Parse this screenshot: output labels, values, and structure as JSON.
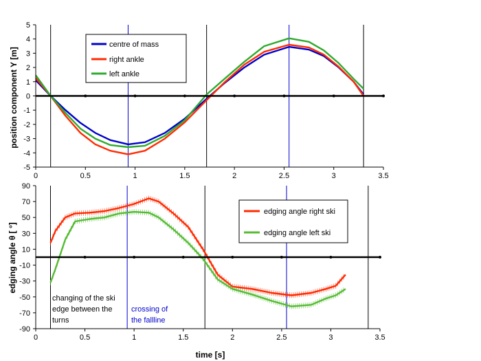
{
  "chart_data": [
    {
      "type": "line",
      "xlabel": "",
      "ylabel": "position component Y [m]",
      "xlim": [
        0,
        3.5
      ],
      "ylim": [
        -5,
        5
      ],
      "xticks": [
        "0",
        "0.5",
        "1",
        "1.5",
        "2",
        "2.5",
        "3",
        "3.5"
      ],
      "yticks": [
        "5",
        "4",
        "3",
        "2",
        "1",
        "0",
        "-1",
        "-2",
        "-3",
        "-4",
        "-5"
      ],
      "legend_position": "top-left",
      "vertical_lines": [
        {
          "x": 0.15,
          "color": "#000000"
        },
        {
          "x": 0.93,
          "color": "#0000cc"
        },
        {
          "x": 1.72,
          "color": "#000000"
        },
        {
          "x": 2.55,
          "color": "#0000cc"
        },
        {
          "x": 3.3,
          "color": "#000000"
        }
      ],
      "series": [
        {
          "name": "centre of mass",
          "color": "#0000cc",
          "x": [
            0,
            0.15,
            0.3,
            0.45,
            0.6,
            0.75,
            0.93,
            1.1,
            1.3,
            1.5,
            1.72,
            1.9,
            2.1,
            2.3,
            2.55,
            2.75,
            2.9,
            3.05,
            3.2,
            3.3
          ],
          "y": [
            1.1,
            0.0,
            -1.0,
            -1.9,
            -2.6,
            -3.1,
            -3.4,
            -3.25,
            -2.6,
            -1.6,
            -0.2,
            0.9,
            2.0,
            2.9,
            3.45,
            3.25,
            2.8,
            2.0,
            1.0,
            0.1
          ]
        },
        {
          "name": "right ankle",
          "color": "#ff2a00",
          "x": [
            0,
            0.15,
            0.3,
            0.45,
            0.6,
            0.75,
            0.93,
            1.1,
            1.3,
            1.5,
            1.72,
            1.9,
            2.1,
            2.3,
            2.55,
            2.75,
            2.9,
            3.05,
            3.2,
            3.3
          ],
          "y": [
            1.25,
            0.0,
            -1.4,
            -2.6,
            -3.4,
            -3.85,
            -4.1,
            -3.85,
            -3.0,
            -1.85,
            -0.3,
            0.95,
            2.2,
            3.1,
            3.6,
            3.4,
            2.9,
            2.05,
            1.0,
            0.0
          ]
        },
        {
          "name": "left ankle",
          "color": "#2eaa2e",
          "x": [
            0,
            0.15,
            0.3,
            0.45,
            0.6,
            0.75,
            0.93,
            1.1,
            1.3,
            1.5,
            1.72,
            1.9,
            2.1,
            2.3,
            2.55,
            2.75,
            2.9,
            3.05,
            3.2,
            3.3
          ],
          "y": [
            1.45,
            0.0,
            -1.2,
            -2.3,
            -3.0,
            -3.45,
            -3.6,
            -3.5,
            -2.8,
            -1.7,
            0.1,
            1.2,
            2.4,
            3.5,
            4.05,
            3.8,
            3.2,
            2.3,
            1.2,
            0.5
          ]
        }
      ]
    },
    {
      "type": "line",
      "xlabel": "time [s]",
      "ylabel": "edging angle  θ  [ °]",
      "xlim": [
        0,
        3.5
      ],
      "ylim": [
        -90,
        90
      ],
      "xticks": [
        "0",
        "0.5",
        "1",
        "1.5",
        "2",
        "2.5",
        "3",
        "3.5"
      ],
      "yticks": [
        "90",
        "70",
        "50",
        "30",
        "10",
        "-10",
        "-30",
        "-50",
        "-70",
        "-90"
      ],
      "legend_position": "top-right",
      "vertical_lines": [
        {
          "x": 0.15,
          "color": "#000000"
        },
        {
          "x": 0.93,
          "color": "#0000cc"
        },
        {
          "x": 1.72,
          "color": "#000000"
        },
        {
          "x": 2.55,
          "color": "#0000cc"
        },
        {
          "x": 3.38,
          "color": "#000000"
        }
      ],
      "annotations": [
        {
          "lines": [
            "changing of the ski",
            "edge between the",
            "turns"
          ],
          "x": 0.18,
          "y": -58,
          "color": "#000000"
        },
        {
          "lines": [
            "crossing of",
            "the fallline"
          ],
          "x": 0.96,
          "y": -58,
          "color": "#0000cc"
        }
      ],
      "series": [
        {
          "name": "edging angle right ski",
          "color": "#ff2a00",
          "x": [
            0.15,
            0.2,
            0.3,
            0.4,
            0.55,
            0.7,
            0.85,
            1.0,
            1.15,
            1.25,
            1.4,
            1.55,
            1.7,
            1.85,
            2.0,
            2.2,
            2.4,
            2.6,
            2.8,
            2.95,
            3.05,
            3.15
          ],
          "y": [
            18,
            33,
            50,
            55,
            56,
            58,
            62,
            67,
            74,
            70,
            55,
            38,
            10,
            -22,
            -37,
            -40,
            -45,
            -48,
            -45,
            -40,
            -36,
            -22
          ]
        },
        {
          "name": "edging angle left ski",
          "color": "#55bb33",
          "x": [
            0.15,
            0.2,
            0.3,
            0.4,
            0.55,
            0.7,
            0.85,
            1.0,
            1.15,
            1.25,
            1.4,
            1.55,
            1.7,
            1.85,
            2.0,
            2.2,
            2.4,
            2.6,
            2.8,
            2.95,
            3.05,
            3.15
          ],
          "y": [
            -32,
            -15,
            22,
            45,
            48,
            50,
            55,
            57,
            56,
            50,
            35,
            18,
            -2,
            -28,
            -40,
            -47,
            -55,
            -62,
            -60,
            -52,
            -48,
            -40
          ]
        }
      ]
    }
  ]
}
